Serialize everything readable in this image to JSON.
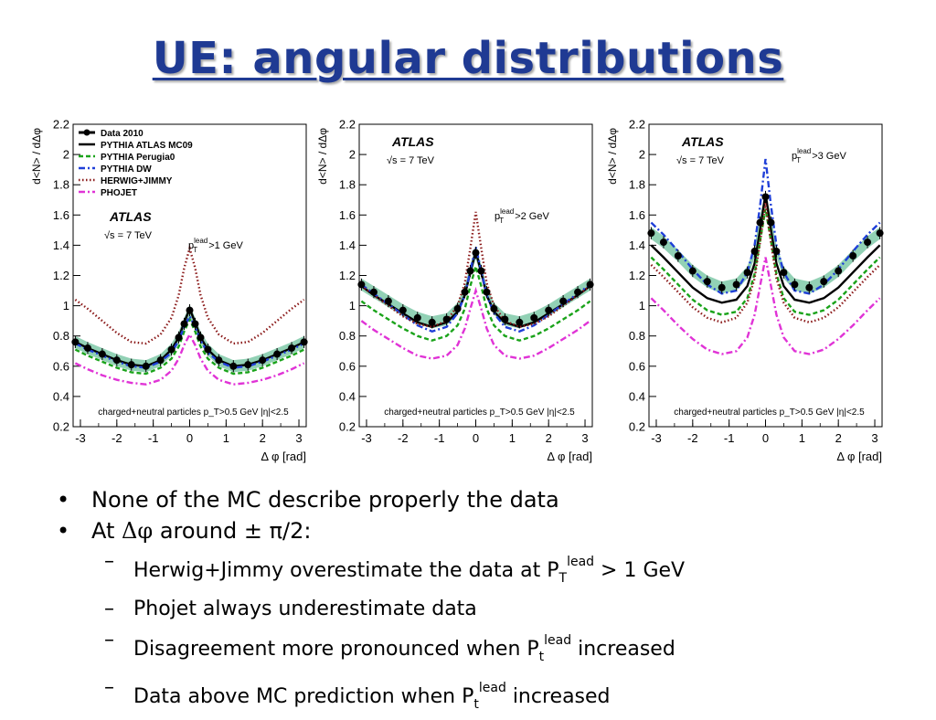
{
  "slide": {
    "title": "UE: angular distributions"
  },
  "bullets": {
    "level1": [
      "None of the MC describe properly the data",
      {
        "prefix": "At ",
        "symbol": "Δφ",
        "suffix": " around ± π/2:"
      }
    ],
    "level2": [
      {
        "pre": "Herwig+Jimmy overestimate the data at P",
        "sub": "T",
        "sup": "lead",
        "post": " > 1 GeV"
      },
      {
        "pre": "Phojet always underestimate data"
      },
      {
        "pre": "Disagreement more pronounced when P",
        "sub": "t",
        "sup": "lead",
        "post": " increased"
      },
      {
        "pre": "Data above MC prediction when P",
        "sub": "t",
        "sup": "lead",
        "post": " increased"
      }
    ]
  },
  "chart_data": [
    {
      "type": "line",
      "ylabel": "d<N> / dΔφ",
      "xlabel": "Δ φ [rad]",
      "experiment": "ATLAS",
      "energy": "√s = 7 TeV",
      "selection": {
        "label": "p",
        "sub": "T",
        "sup": "lead",
        "cut": " >1 GeV"
      },
      "footer": "charged+neutral particles p_T>0.5 GeV  |η|<2.5",
      "xlim": [
        -3.2,
        3.2
      ],
      "ylim": [
        0.2,
        2.2
      ],
      "xticks": [
        -3,
        -2,
        -1,
        0,
        1,
        2,
        3
      ],
      "yticks": [
        0.2,
        0.4,
        0.6,
        0.8,
        1,
        1.2,
        1.4,
        1.6,
        1.8,
        2,
        2.2
      ],
      "legend": "top-left",
      "x": [
        -3.14,
        -2.8,
        -2.4,
        -2.0,
        -1.6,
        -1.2,
        -0.8,
        -0.5,
        -0.3,
        -0.15,
        0,
        0.15,
        0.3,
        0.5,
        0.8,
        1.2,
        1.6,
        2.0,
        2.4,
        2.8,
        3.14
      ],
      "series": [
        {
          "name": "Data 2010",
          "style": "data",
          "color": "#000000",
          "values": [
            0.76,
            0.72,
            0.68,
            0.64,
            0.61,
            0.6,
            0.64,
            0.71,
            0.79,
            0.88,
            0.97,
            0.88,
            0.79,
            0.71,
            0.64,
            0.6,
            0.61,
            0.64,
            0.68,
            0.72,
            0.76
          ]
        },
        {
          "name": "PYTHIA ATLAS MC09",
          "style": "solid",
          "color": "#000000",
          "values": [
            0.76,
            0.72,
            0.68,
            0.64,
            0.61,
            0.6,
            0.64,
            0.71,
            0.79,
            0.89,
            0.98,
            0.89,
            0.79,
            0.71,
            0.64,
            0.6,
            0.61,
            0.64,
            0.68,
            0.72,
            0.76
          ]
        },
        {
          "name": "PYTHIA Perugia0",
          "style": "dashed",
          "color": "#1aa31a",
          "values": [
            0.71,
            0.67,
            0.63,
            0.59,
            0.56,
            0.55,
            0.59,
            0.65,
            0.73,
            0.83,
            0.91,
            0.83,
            0.73,
            0.65,
            0.59,
            0.55,
            0.56,
            0.59,
            0.63,
            0.67,
            0.71
          ]
        },
        {
          "name": "PYTHIA DW",
          "style": "dashdot",
          "color": "#1f3fd8",
          "values": [
            0.75,
            0.71,
            0.67,
            0.63,
            0.6,
            0.59,
            0.63,
            0.69,
            0.77,
            0.86,
            0.93,
            0.86,
            0.77,
            0.69,
            0.63,
            0.59,
            0.6,
            0.63,
            0.67,
            0.71,
            0.75
          ]
        },
        {
          "name": "HERWIG+JIMMY",
          "style": "dotted",
          "color": "#8b1a1a",
          "values": [
            1.04,
            0.98,
            0.9,
            0.82,
            0.76,
            0.75,
            0.81,
            0.92,
            1.07,
            1.25,
            1.38,
            1.25,
            1.07,
            0.92,
            0.81,
            0.75,
            0.76,
            0.82,
            0.9,
            0.98,
            1.04
          ]
        },
        {
          "name": "PHOJET",
          "style": "dashdot",
          "color": "#e033d6",
          "values": [
            0.62,
            0.58,
            0.54,
            0.51,
            0.49,
            0.48,
            0.51,
            0.57,
            0.65,
            0.74,
            0.81,
            0.74,
            0.65,
            0.57,
            0.51,
            0.48,
            0.49,
            0.51,
            0.54,
            0.58,
            0.62
          ]
        }
      ]
    },
    {
      "type": "line",
      "ylabel": "d<N> / dΔφ",
      "xlabel": "Δ φ [rad]",
      "experiment": "ATLAS",
      "energy": "√s = 7 TeV",
      "selection": {
        "label": "p",
        "sub": "T",
        "sup": "lead",
        "cut": " >2 GeV"
      },
      "footer": "charged+neutral particles p_T>0.5 GeV  |η|<2.5",
      "xlim": [
        -3.2,
        3.2
      ],
      "ylim": [
        0.2,
        2.2
      ],
      "xticks": [
        -3,
        -2,
        -1,
        0,
        1,
        2,
        3
      ],
      "yticks": [
        0.2,
        0.4,
        0.6,
        0.8,
        1,
        1.2,
        1.4,
        1.6,
        1.8,
        2,
        2.2
      ],
      "x": [
        -3.14,
        -2.8,
        -2.4,
        -2.0,
        -1.6,
        -1.2,
        -0.8,
        -0.5,
        -0.3,
        -0.15,
        0,
        0.15,
        0.3,
        0.5,
        0.8,
        1.2,
        1.6,
        2.0,
        2.4,
        2.8,
        3.14
      ],
      "series": [
        {
          "name": "Data 2010",
          "style": "data",
          "color": "#000000",
          "values": [
            1.14,
            1.09,
            1.03,
            0.97,
            0.92,
            0.89,
            0.91,
            0.98,
            1.09,
            1.23,
            1.35,
            1.23,
            1.09,
            0.98,
            0.91,
            0.89,
            0.92,
            0.97,
            1.03,
            1.09,
            1.14
          ]
        },
        {
          "name": "PYTHIA ATLAS MC09",
          "style": "solid",
          "color": "#000000",
          "values": [
            1.13,
            1.07,
            1.01,
            0.95,
            0.89,
            0.86,
            0.89,
            0.96,
            1.07,
            1.22,
            1.36,
            1.22,
            1.07,
            0.96,
            0.89,
            0.86,
            0.89,
            0.95,
            1.01,
            1.07,
            1.13
          ]
        },
        {
          "name": "PYTHIA Perugia0",
          "style": "dashed",
          "color": "#1aa31a",
          "values": [
            1.03,
            0.97,
            0.91,
            0.85,
            0.8,
            0.77,
            0.8,
            0.87,
            0.98,
            1.13,
            1.26,
            1.13,
            0.98,
            0.87,
            0.8,
            0.77,
            0.8,
            0.85,
            0.91,
            0.97,
            1.03
          ]
        },
        {
          "name": "PYTHIA DW",
          "style": "dashdot",
          "color": "#1f3fd8",
          "values": [
            1.14,
            1.08,
            1.01,
            0.94,
            0.87,
            0.83,
            0.86,
            0.95,
            1.07,
            1.23,
            1.39,
            1.23,
            1.07,
            0.95,
            0.86,
            0.83,
            0.87,
            0.94,
            1.01,
            1.08,
            1.14
          ]
        },
        {
          "name": "HERWIG+JIMMY",
          "style": "dotted",
          "color": "#8b1a1a",
          "values": [
            1.13,
            1.07,
            1.0,
            0.93,
            0.88,
            0.86,
            0.9,
            1.0,
            1.15,
            1.38,
            1.62,
            1.38,
            1.15,
            1.0,
            0.9,
            0.86,
            0.88,
            0.93,
            1.0,
            1.07,
            1.13
          ]
        },
        {
          "name": "PHOJET",
          "style": "dashdot",
          "color": "#e033d6",
          "values": [
            0.9,
            0.84,
            0.78,
            0.72,
            0.67,
            0.65,
            0.67,
            0.74,
            0.85,
            0.98,
            1.1,
            0.98,
            0.85,
            0.74,
            0.67,
            0.65,
            0.67,
            0.72,
            0.78,
            0.84,
            0.9
          ]
        }
      ]
    },
    {
      "type": "line",
      "ylabel": "d<N> / dΔφ",
      "xlabel": "Δ φ [rad]",
      "experiment": "ATLAS",
      "energy": "√s = 7 TeV",
      "selection": {
        "label": "p",
        "sub": "T",
        "sup": "lead",
        "cut": " >3 GeV"
      },
      "footer": "charged+neutral particles p_T>0.5 GeV  |η|<2.5",
      "xlim": [
        -3.2,
        3.2
      ],
      "ylim": [
        0.2,
        2.2
      ],
      "xticks": [
        -3,
        -2,
        -1,
        0,
        1,
        2,
        3
      ],
      "yticks": [
        0.2,
        0.4,
        0.6,
        0.8,
        1,
        1.2,
        1.4,
        1.6,
        1.8,
        2,
        2.2
      ],
      "x": [
        -3.14,
        -2.8,
        -2.4,
        -2.0,
        -1.6,
        -1.2,
        -0.8,
        -0.5,
        -0.3,
        -0.15,
        0,
        0.15,
        0.3,
        0.5,
        0.8,
        1.2,
        1.6,
        2.0,
        2.4,
        2.8,
        3.14
      ],
      "series": [
        {
          "name": "Data 2010",
          "style": "data",
          "color": "#000000",
          "values": [
            1.48,
            1.42,
            1.33,
            1.23,
            1.16,
            1.12,
            1.14,
            1.22,
            1.36,
            1.55,
            1.72,
            1.55,
            1.36,
            1.22,
            1.14,
            1.12,
            1.16,
            1.23,
            1.33,
            1.42,
            1.48
          ]
        },
        {
          "name": "PYTHIA ATLAS MC09",
          "style": "solid",
          "color": "#000000",
          "values": [
            1.4,
            1.32,
            1.22,
            1.12,
            1.05,
            1.02,
            1.04,
            1.13,
            1.28,
            1.5,
            1.74,
            1.5,
            1.28,
            1.13,
            1.04,
            1.02,
            1.05,
            1.12,
            1.22,
            1.32,
            1.4
          ]
        },
        {
          "name": "PYTHIA Perugia0",
          "style": "dashed",
          "color": "#1aa31a",
          "values": [
            1.32,
            1.24,
            1.14,
            1.04,
            0.97,
            0.94,
            0.96,
            1.05,
            1.21,
            1.43,
            1.64,
            1.43,
            1.21,
            1.05,
            0.96,
            0.94,
            0.97,
            1.04,
            1.14,
            1.24,
            1.32
          ]
        },
        {
          "name": "PYTHIA DW",
          "style": "dashdot",
          "color": "#1f3fd8",
          "values": [
            1.55,
            1.47,
            1.36,
            1.24,
            1.14,
            1.08,
            1.1,
            1.22,
            1.4,
            1.66,
            1.97,
            1.66,
            1.4,
            1.22,
            1.1,
            1.08,
            1.14,
            1.24,
            1.36,
            1.47,
            1.55
          ]
        },
        {
          "name": "HERWIG+JIMMY",
          "style": "dotted",
          "color": "#8b1a1a",
          "values": [
            1.27,
            1.19,
            1.09,
            0.99,
            0.92,
            0.89,
            0.92,
            1.02,
            1.18,
            1.42,
            1.68,
            1.42,
            1.18,
            1.02,
            0.92,
            0.89,
            0.92,
            0.99,
            1.09,
            1.19,
            1.27
          ]
        },
        {
          "name": "PHOJET",
          "style": "dashdot",
          "color": "#e033d6",
          "values": [
            1.05,
            0.97,
            0.87,
            0.78,
            0.71,
            0.68,
            0.7,
            0.79,
            0.94,
            1.13,
            1.32,
            1.13,
            0.94,
            0.79,
            0.7,
            0.68,
            0.71,
            0.78,
            0.87,
            0.97,
            1.05
          ]
        }
      ]
    }
  ]
}
